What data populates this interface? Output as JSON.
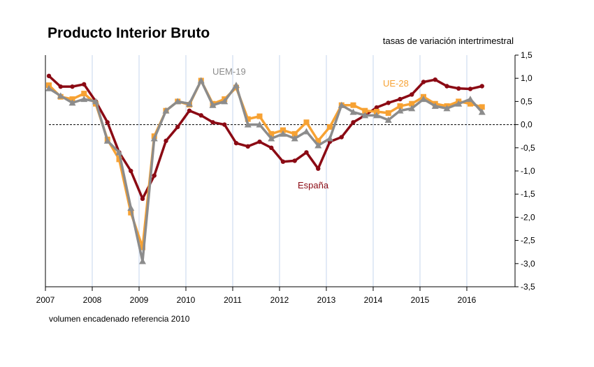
{
  "chart_data": {
    "type": "line",
    "title": "Producto Interior Bruto",
    "subtitle": "tasas de variación intertrimestral",
    "footnote": "volumen encadenado referencia 2010",
    "xlabel": "",
    "ylabel": "",
    "ylim": [
      -3.5,
      1.5
    ],
    "yticks": [
      "1,5",
      "1,0",
      "0,5",
      "0,0",
      "-0,5",
      "-1,0",
      "-1,5",
      "-2,0",
      "-2,5",
      "-3,0",
      "-3,5"
    ],
    "xticks": [
      "2007",
      "2008",
      "2009",
      "2010",
      "2011",
      "2012",
      "2013",
      "2014",
      "2015",
      "2016"
    ],
    "x_start": "2007T1",
    "frequency": "quarterly",
    "grid": "vertical year lines",
    "series": [
      {
        "name": "España",
        "color": "#8B0A14",
        "marker": "circle",
        "values": [
          1.05,
          0.82,
          0.82,
          0.87,
          0.5,
          0.05,
          -0.6,
          -1.0,
          -1.6,
          -1.1,
          -0.35,
          -0.05,
          0.3,
          0.2,
          0.05,
          0.0,
          -0.4,
          -0.47,
          -0.37,
          -0.5,
          -0.8,
          -0.78,
          -0.6,
          -0.95,
          -0.37,
          -0.27,
          0.05,
          0.2,
          0.37,
          0.47,
          0.55,
          0.65,
          0.92,
          0.97,
          0.83,
          0.78,
          0.77,
          0.83
        ]
      },
      {
        "name": "UE-28",
        "color": "#F7A233",
        "marker": "square",
        "values": [
          0.85,
          0.6,
          0.55,
          0.67,
          0.45,
          -0.32,
          -0.75,
          -1.9,
          -2.65,
          -0.25,
          0.3,
          0.5,
          0.43,
          0.95,
          0.45,
          0.55,
          0.8,
          0.12,
          0.18,
          -0.2,
          -0.12,
          -0.2,
          0.05,
          -0.35,
          -0.05,
          0.42,
          0.42,
          0.3,
          0.28,
          0.25,
          0.4,
          0.45,
          0.6,
          0.45,
          0.4,
          0.5,
          0.45,
          0.38
        ]
      },
      {
        "name": "UEM-19",
        "color": "#8C8C8C",
        "marker": "triangle",
        "values": [
          0.78,
          0.62,
          0.47,
          0.55,
          0.5,
          -0.35,
          -0.6,
          -1.8,
          -2.95,
          -0.3,
          0.3,
          0.5,
          0.45,
          0.95,
          0.42,
          0.5,
          0.85,
          0.0,
          0.0,
          -0.3,
          -0.2,
          -0.3,
          -0.15,
          -0.45,
          -0.3,
          0.42,
          0.27,
          0.2,
          0.2,
          0.1,
          0.3,
          0.35,
          0.55,
          0.4,
          0.35,
          0.45,
          0.55,
          0.27
        ]
      }
    ]
  }
}
